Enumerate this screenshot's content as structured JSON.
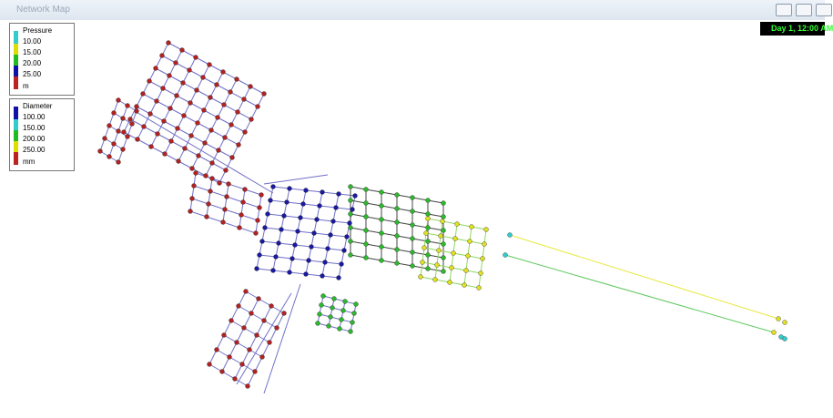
{
  "window": {
    "title": "Network Map",
    "time_label": "Day 1, 12:00 AM"
  },
  "pressure_legend": {
    "title": "Pressure",
    "labels": [
      "10.00",
      "15.00",
      "20.00",
      "25.00"
    ],
    "unit": "m"
  },
  "diameter_legend": {
    "title": "Diameter",
    "labels": [
      "100.00",
      "150.00",
      "200.00",
      "250.00"
    ],
    "unit": "mm"
  }
}
